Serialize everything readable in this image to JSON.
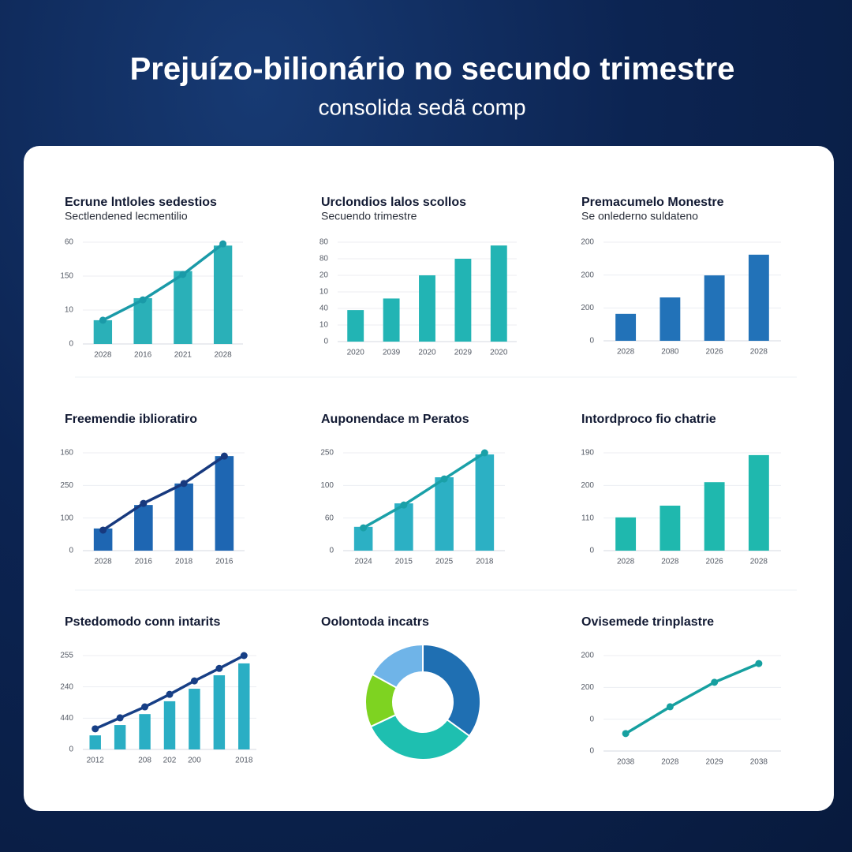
{
  "title": "Prejuízo-bilionário no secundo trimestre",
  "subtitle": "consolida sedã comp",
  "chart_data": [
    {
      "type": "bar",
      "title": "Ecrune lntloles sedestios",
      "subtitle": "Sectlendened lecmentilio",
      "categories": [
        "2028",
        "2016",
        "2021",
        "2028"
      ],
      "series": [
        {
          "type": "bar",
          "color": "#2ab0b8",
          "values": [
            14,
            27,
            43,
            58
          ]
        },
        {
          "type": "line",
          "color": "#1a9aa8",
          "values": [
            14,
            26,
            41,
            59
          ]
        }
      ],
      "ylim": [
        0,
        60
      ],
      "yticks": [
        0,
        {
          "value": 20,
          "label": "10"
        },
        {
          "value": 40,
          "label": "150"
        },
        60
      ],
      "grid": true
    },
    {
      "type": "bar",
      "title": "Urclondios lalos scollos",
      "subtitle": "Secuendo trimestre",
      "categories": [
        "2020",
        "2039",
        "2020",
        "2029",
        "2020"
      ],
      "series": [
        {
          "type": "bar",
          "color": "#22b4b4",
          "values": [
            19,
            26,
            40,
            50,
            58
          ]
        }
      ],
      "ylim": [
        0,
        60
      ],
      "yticks": [
        0,
        10,
        {
          "value": 20,
          "label": "40"
        },
        {
          "value": 30,
          "label": "10"
        },
        {
          "value": 40,
          "label": "20"
        },
        {
          "value": 50,
          "label": "80"
        },
        {
          "value": 60,
          "label": "80"
        }
      ],
      "grid": true
    },
    {
      "type": "bar",
      "title": "Premacumelo Monestre",
      "subtitle": "Se onlederno suldateno",
      "categories": [
        "2028",
        "2080",
        "2026",
        "2028"
      ],
      "series": [
        {
          "type": "bar",
          "color": "#2272b8",
          "values": [
            82,
            132,
            199,
            262
          ]
        }
      ],
      "ylim": [
        0,
        300
      ],
      "yticks": [
        0,
        {
          "value": 100,
          "label": "200"
        },
        200,
        {
          "value": 300,
          "label": "200"
        }
      ],
      "grid": true
    },
    {
      "type": "bar",
      "title": "Freemendie iblioratiro",
      "categories": [
        "2028",
        "2016",
        "2018",
        "2016"
      ],
      "series": [
        {
          "type": "bar",
          "color": "#1e66b2",
          "values": [
            68,
            140,
            206,
            290
          ]
        },
        {
          "type": "line",
          "color": "#17397e",
          "values": [
            63,
            145,
            206,
            290
          ]
        }
      ],
      "ylim": [
        0,
        300
      ],
      "yticks": [
        0,
        100,
        {
          "value": 200,
          "label": "250"
        },
        {
          "value": 300,
          "label": "160"
        }
      ],
      "grid": true
    },
    {
      "type": "bar",
      "title": "Auponendace m Peratos",
      "categories": [
        "2024",
        "2015",
        "2025",
        "2018"
      ],
      "series": [
        {
          "type": "bar",
          "color": "#2cb0c4",
          "values": [
            73,
            145,
            225,
            295
          ]
        },
        {
          "type": "line",
          "color": "#1aa0a8",
          "values": [
            70,
            140,
            220,
            300
          ]
        }
      ],
      "ylim": [
        0,
        300
      ],
      "yticks": [
        0,
        {
          "value": 100,
          "label": "60"
        },
        {
          "value": 200,
          "label": "100"
        },
        {
          "value": 300,
          "label": "250"
        }
      ],
      "grid": true
    },
    {
      "type": "bar",
      "title": "Intordproco fio chatrie",
      "categories": [
        "2028",
        "2028",
        "2026",
        "2028"
      ],
      "series": [
        {
          "type": "bar",
          "color": "#1fb8ae",
          "values": [
            102,
            138,
            210,
            293
          ]
        }
      ],
      "ylim": [
        0,
        300
      ],
      "yticks": [
        0,
        {
          "value": 100,
          "label": "110"
        },
        200,
        {
          "value": 300,
          "label": "190"
        }
      ],
      "grid": true
    },
    {
      "type": "bar",
      "title": "Pstedomodo conn intarits",
      "categories": [
        "2012",
        null,
        "208",
        "202",
        "200",
        null,
        "2018"
      ],
      "series": [
        {
          "type": "bar",
          "color": "#2aaec4",
          "values": [
            45,
            78,
            113,
            154,
            194,
            237,
            275
          ]
        },
        {
          "type": "line",
          "color": "#173f86",
          "values": [
            66,
            101,
            136,
            176,
            219,
            259,
            300
          ]
        }
      ],
      "ylim": [
        0,
        300
      ],
      "yticks": [
        0,
        {
          "value": 100,
          "label": "440"
        },
        {
          "value": 200,
          "label": "240"
        },
        {
          "value": 300,
          "label": "255"
        }
      ],
      "grid": true
    },
    {
      "type": "pie",
      "title": "Oolontoda incatrs",
      "donut": true,
      "values": [
        35,
        33,
        15,
        17
      ],
      "colors": [
        "#1f6fb2",
        "#1ebfb0",
        "#7ed321",
        "#6fb4e8"
      ]
    },
    {
      "type": "line",
      "title": "Ovisemede trinplastre",
      "categories": [
        "2038",
        "2028",
        "2029",
        "2038"
      ],
      "series": [
        {
          "type": "line",
          "color": "#16a0a0",
          "values": [
            55,
            139,
            216,
            275
          ]
        }
      ],
      "ylim": [
        0,
        300
      ],
      "yticks": [
        0,
        {
          "value": 100,
          "label": "0"
        },
        200,
        {
          "value": 300,
          "label": "200"
        }
      ],
      "grid": true
    }
  ]
}
